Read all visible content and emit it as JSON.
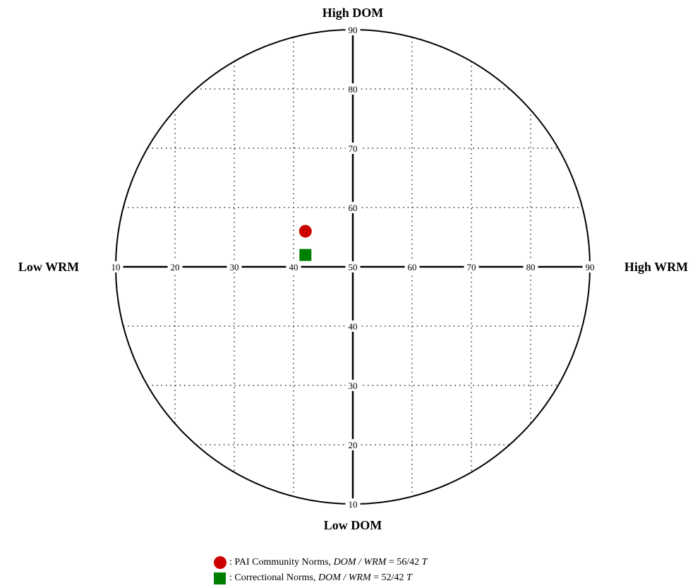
{
  "chart_data": {
    "type": "scatter",
    "plot_kind": "interpersonal circumplex",
    "x_axis": {
      "variable": "WRM",
      "low_label": "Low WRM",
      "high_label": "High WRM",
      "range": [
        10,
        90
      ],
      "ticks": [
        10,
        20,
        30,
        40,
        50,
        60,
        70,
        80,
        90
      ]
    },
    "y_axis": {
      "variable": "DOM",
      "low_label": "Low DOM",
      "high_label": "High DOM",
      "range": [
        10,
        90
      ],
      "ticks": [
        10,
        20,
        30,
        40,
        50,
        60,
        70,
        80,
        90
      ]
    },
    "grid": true,
    "grid_step": 10,
    "legend_position": "bottom-center",
    "series": [
      {
        "name": "PAI Community Norms",
        "marker": "circle",
        "color": "#cc0000",
        "DOM": 56,
        "WRM": 42,
        "legend_prefix": ": PAI Community Norms, ",
        "legend_vars": "DOM / WRM",
        "legend_eq": " = 56/42 ",
        "legend_unit": "T"
      },
      {
        "name": "Correctional Norms",
        "marker": "square",
        "color": "#008000",
        "DOM": 52,
        "WRM": 42,
        "legend_prefix": ": Correctional Norms, ",
        "legend_vars": "DOM / WRM",
        "legend_eq": " = 52/42 ",
        "legend_unit": "T"
      }
    ]
  }
}
